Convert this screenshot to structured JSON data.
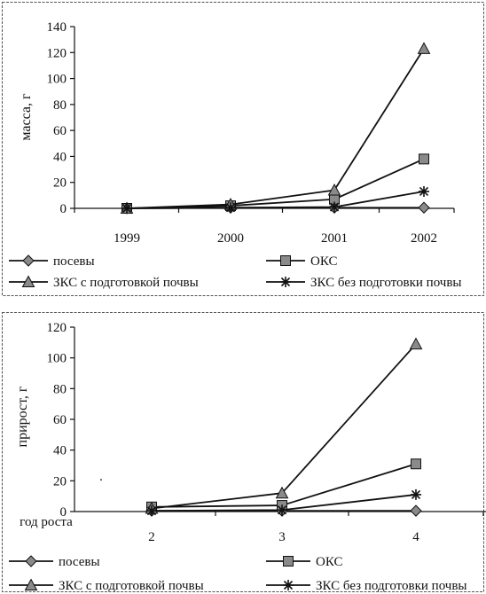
{
  "chart_data": [
    {
      "type": "line",
      "title": "",
      "xlabel": "",
      "ylabel": "масса, г",
      "categories": [
        "1999",
        "2000",
        "2001",
        "2002"
      ],
      "ylim": [
        0,
        140
      ],
      "yticks": [
        0,
        20,
        40,
        60,
        80,
        100,
        120,
        140
      ],
      "grid": false,
      "legend": "bottom",
      "series": [
        {
          "name": "посевы",
          "marker": "diamond",
          "values": [
            0,
            0.5,
            0.5,
            0.5
          ]
        },
        {
          "name": "ОКС",
          "marker": "square",
          "values": [
            0,
            2,
            7,
            38
          ]
        },
        {
          "name": "ЗКС с подготовкой почвы",
          "marker": "triangle",
          "values": [
            0,
            3,
            14,
            123
          ]
        },
        {
          "name": "ЗКС без подготовки почвы",
          "marker": "star",
          "values": [
            0,
            0.5,
            1,
            13
          ]
        }
      ]
    },
    {
      "type": "line",
      "title": "",
      "xlabel": "год роста",
      "ylabel": "прирост, г",
      "categories": [
        "",
        "2",
        "3",
        "4"
      ],
      "ylim": [
        0,
        120
      ],
      "yticks": [
        0,
        20,
        40,
        60,
        80,
        100,
        120
      ],
      "grid": false,
      "legend": "bottom",
      "series": [
        {
          "name": "посевы",
          "marker": "diamond",
          "values": [
            null,
            0.5,
            0.5,
            0.5
          ]
        },
        {
          "name": "ОКС",
          "marker": "square",
          "values": [
            null,
            3,
            4,
            31
          ]
        },
        {
          "name": "ЗКС с подготовкой почвы",
          "marker": "triangle",
          "values": [
            null,
            2,
            12,
            109
          ]
        },
        {
          "name": "ЗКС без подготовки почвы",
          "marker": "star",
          "values": [
            null,
            0.5,
            1,
            11
          ]
        }
      ]
    }
  ],
  "colors": {
    "ink": "#111111",
    "marker_fill": "#8a8a8a"
  },
  "stray_mark": "·"
}
